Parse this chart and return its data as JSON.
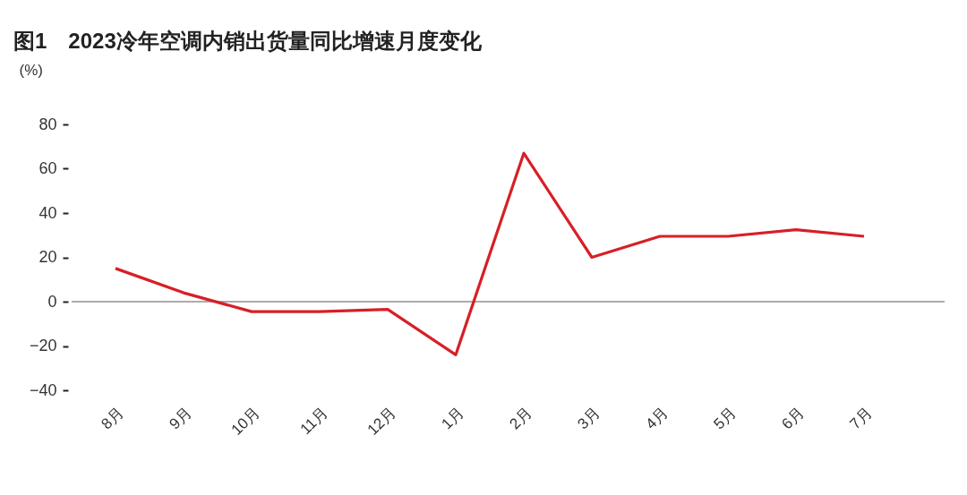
{
  "chart_data": {
    "type": "line",
    "title": "图1　2023冷年空调内销出货量同比增速月度变化",
    "ylabel": "(%)",
    "categories": [
      "8月",
      "9月",
      "10月",
      "11月",
      "12月",
      "1月",
      "2月",
      "3月",
      "4月",
      "5月",
      "6月",
      "7月"
    ],
    "series": [
      {
        "color": "#d71f27",
        "values": [
          15,
          4,
          -4.5,
          -4.5,
          -3.5,
          -24,
          67,
          20,
          29.5,
          29.5,
          32.5,
          29.5
        ]
      }
    ],
    "ylim": [
      -40,
      80
    ],
    "yticks": [
      -40,
      -20,
      0,
      20,
      40,
      60,
      80
    ],
    "ref_lines": [
      {
        "axis": "y",
        "value": 0,
        "color": "#595959"
      }
    ],
    "grid": false,
    "marker": "none",
    "line_style": "solid"
  }
}
